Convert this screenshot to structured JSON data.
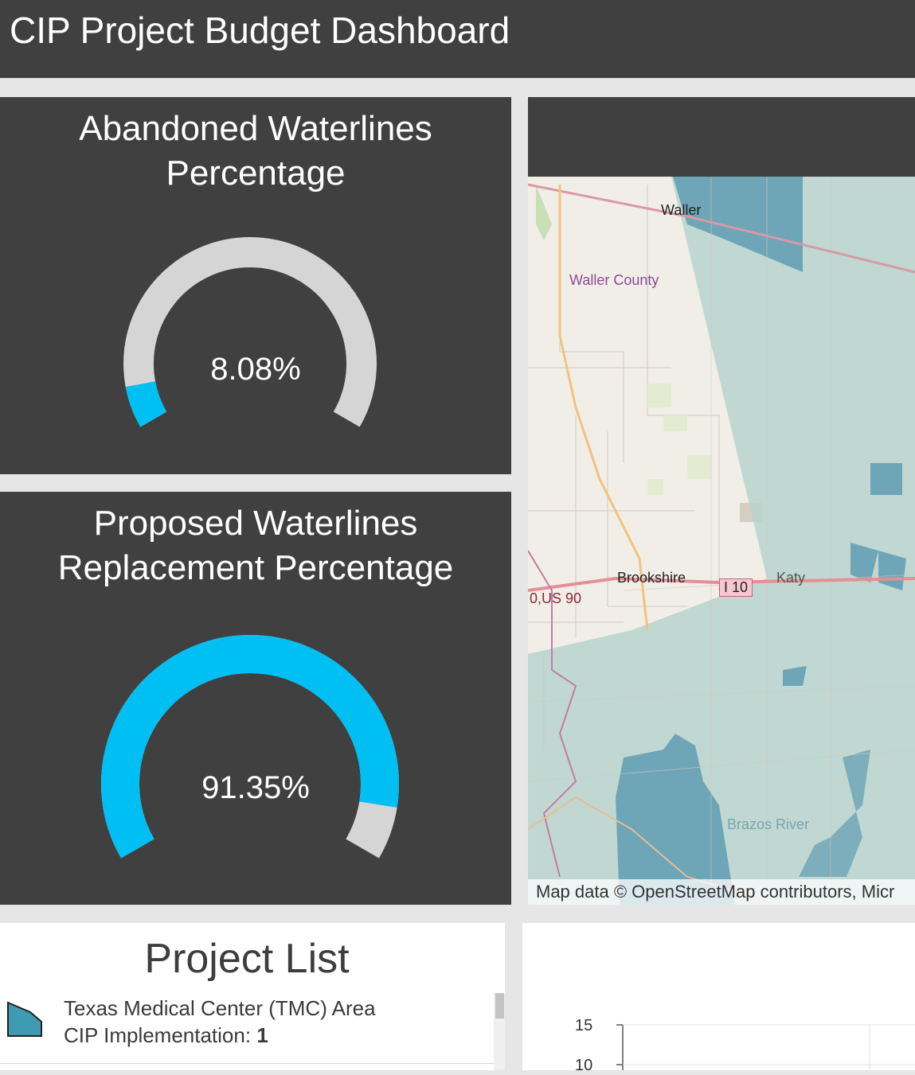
{
  "header": {
    "title": "CIP Project Budget Dashboard"
  },
  "gauges": [
    {
      "title_line1": "Abandoned Waterlines",
      "title_line2": "Percentage",
      "value": 8.08,
      "value_label": "8.08%"
    },
    {
      "title_line1": "Proposed Waterlines",
      "title_line2": "Replacement Percentage",
      "value": 91.35,
      "value_label": "91.35%"
    }
  ],
  "colors": {
    "header_bg": "#404040",
    "panel_bg": "#404040",
    "gauge_fill": "#00bff3",
    "gauge_track": "#d5d5d5",
    "service_area": "#8fbfbf",
    "service_area_dark": "#5f9db3"
  },
  "map": {
    "labels": {
      "waller": "Waller",
      "waller_county": "Waller County",
      "brookshire": "Brookshire",
      "i10": "I 10",
      "katy": "Katy",
      "us90": "0,US 90",
      "brazos_river": "Brazos River"
    },
    "attribution": "Map data © OpenStreetMap contributors, Micr"
  },
  "project_list": {
    "title": "Project List",
    "items": [
      {
        "name": "Texas Medical Center (TMC) Area",
        "meta_label": "CIP Implementation: ",
        "meta_value": "1",
        "icon": "polygon-swatch-icon"
      }
    ]
  },
  "chart": {
    "y_ticks": [
      "15",
      "10"
    ]
  }
}
